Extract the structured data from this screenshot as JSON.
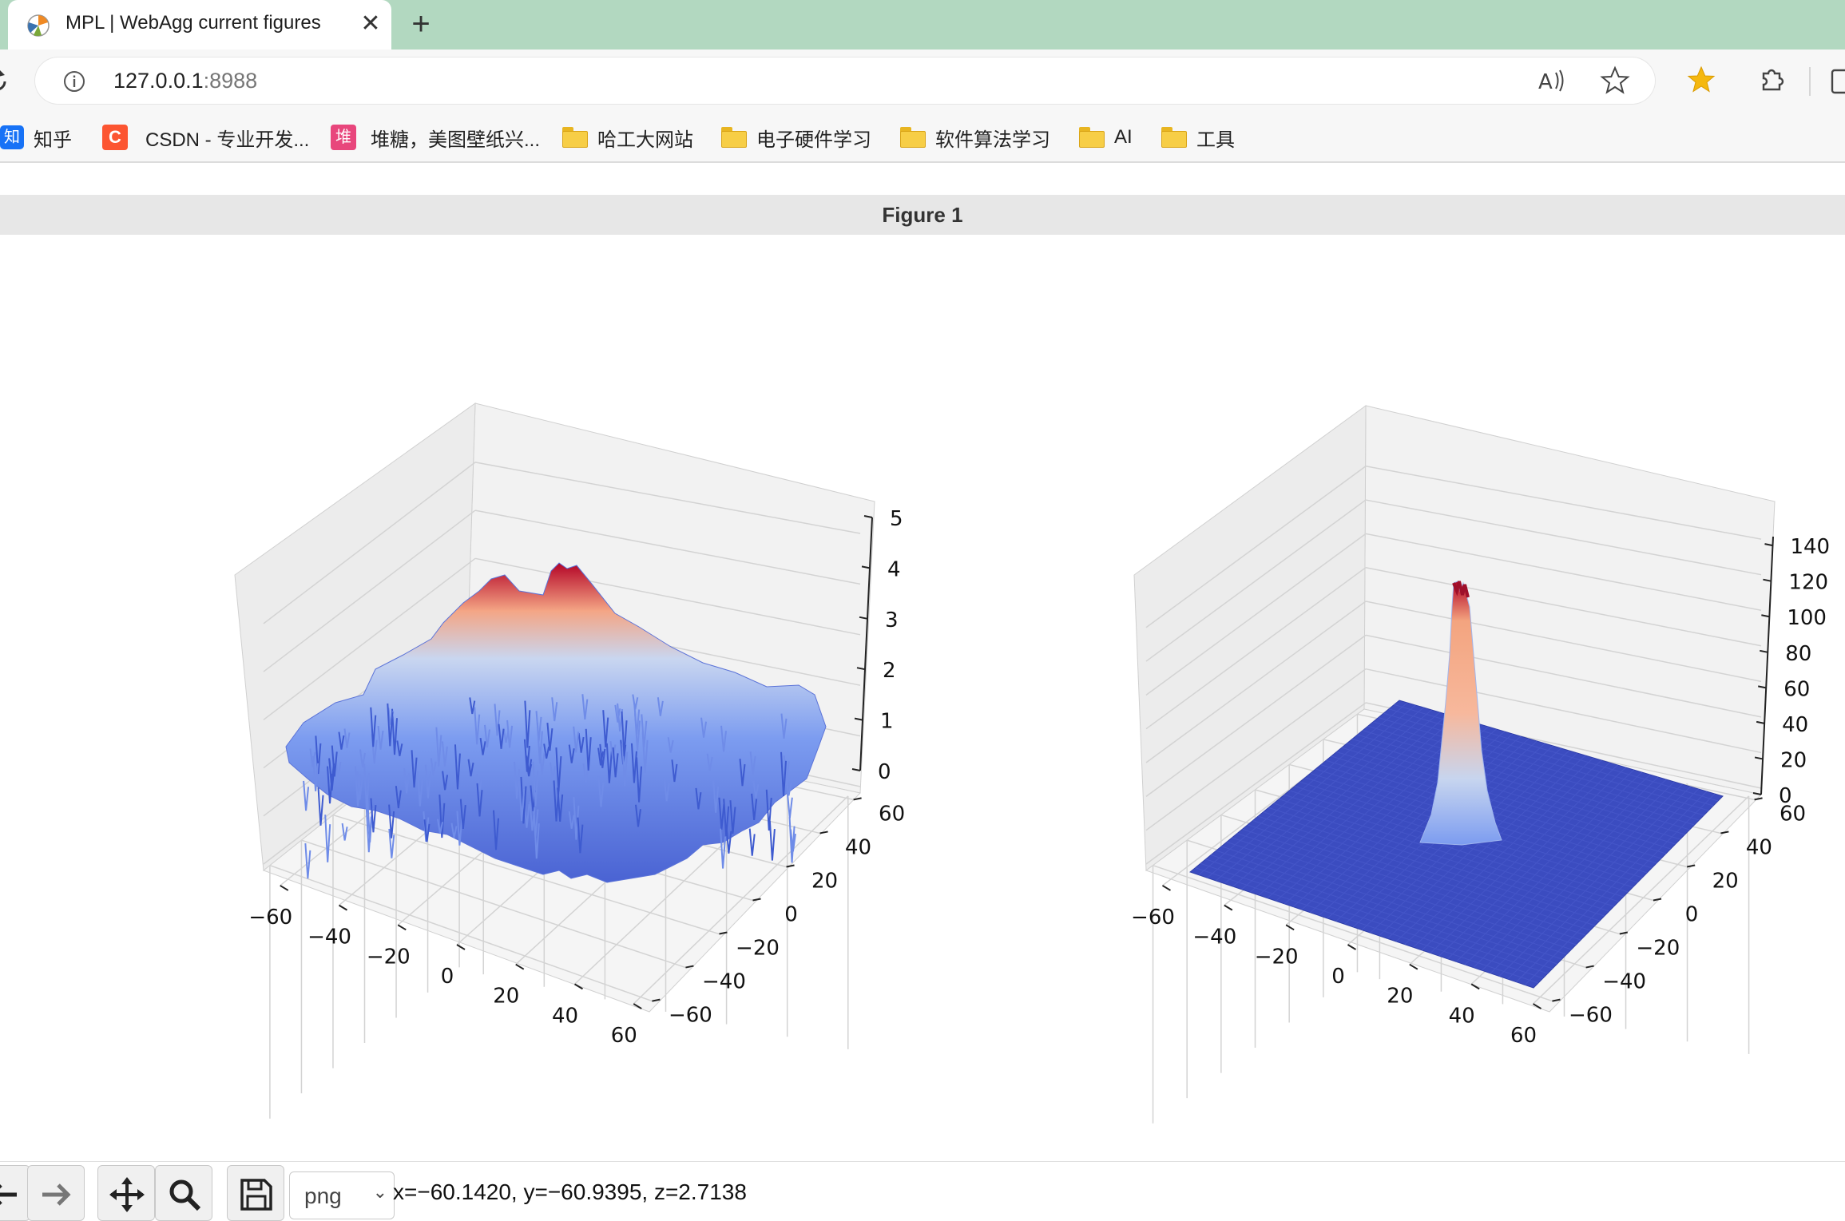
{
  "browser": {
    "tab_title": "MPL | WebAgg current figures",
    "tab_close": "✕",
    "new_tab": "+",
    "url_host": "127.0.0.1",
    "url_port": ":8988",
    "bookmarks": [
      {
        "label": "知乎",
        "badge": "知",
        "badge_color": "#1772f6"
      },
      {
        "label": "CSDN - 专业开发...",
        "badge": "C",
        "badge_color": "#fc5531"
      },
      {
        "label": "堆糖，美图壁纸兴...",
        "badge": "堆",
        "badge_color": "#e8467c"
      },
      {
        "label": "哈工大网站"
      },
      {
        "label": "电子硬件学习"
      },
      {
        "label": "软件算法学习"
      },
      {
        "label": "AI"
      },
      {
        "label": "工具"
      }
    ]
  },
  "figure": {
    "title": "Figure 1"
  },
  "chart_data": [
    {
      "type": "surface",
      "colormap": "coolwarm",
      "x_ticks": [
        -60,
        -40,
        -20,
        0,
        20,
        40,
        60
      ],
      "y_ticks": [
        -60,
        -40,
        -20,
        0,
        20,
        40,
        60
      ],
      "z_ticks": [
        0,
        1,
        2,
        3,
        4,
        5
      ],
      "x_range": [
        -64,
        64
      ],
      "y_range": [
        -64,
        64
      ],
      "z_range": [
        0,
        5
      ],
      "surface": "noisy gaussian bump, peak ~4.5 near center, noise floor ~0.5-2",
      "grid": true
    },
    {
      "type": "surface",
      "colormap": "coolwarm",
      "x_ticks": [
        -60,
        -40,
        -20,
        0,
        20,
        40,
        60
      ],
      "y_ticks": [
        -60,
        -40,
        -20,
        0,
        20,
        40,
        60
      ],
      "z_ticks": [
        0,
        20,
        40,
        60,
        80,
        100,
        120,
        140
      ],
      "x_range": [
        -64,
        64
      ],
      "y_range": [
        -64,
        64
      ],
      "z_range": [
        0,
        145
      ],
      "surface": "narrow peak ~135 at center, flat 0 elsewhere",
      "grid": true
    }
  ],
  "mpl_toolbar": {
    "format_value": "png",
    "format_caret": "⌄",
    "coords": "x=−60.1420, y=−60.9395, z=2.7138"
  }
}
